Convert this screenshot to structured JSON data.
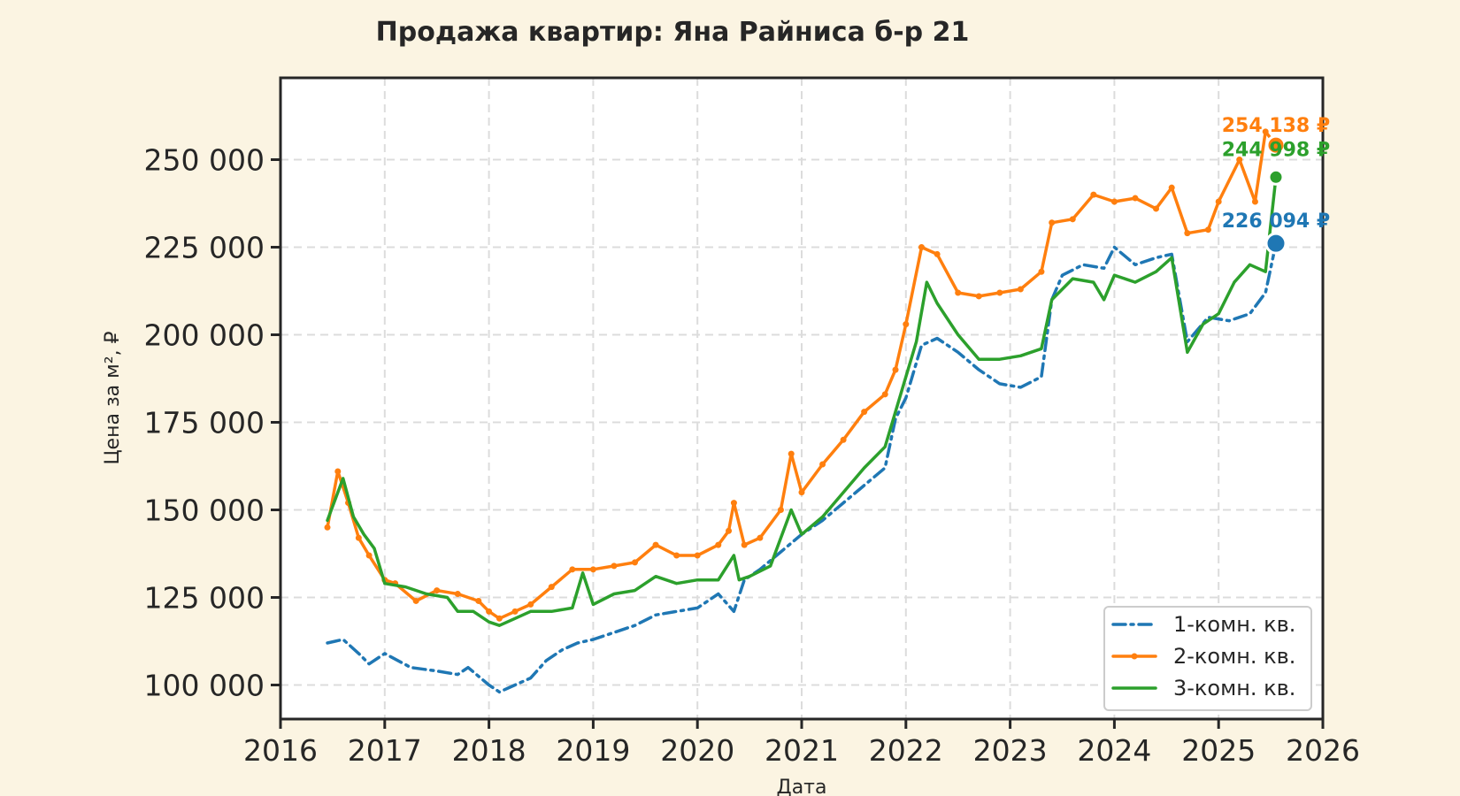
{
  "chart_data": {
    "type": "line",
    "title": "Продажа квартир: Яна Райниса б-р 21",
    "xlabel": "Дата",
    "ylabel": "Цена за м², ₽",
    "xlim": [
      2016,
      2026
    ],
    "ylim": [
      90000,
      270000
    ],
    "x_ticks": [
      "2016",
      "2017",
      "2018",
      "2019",
      "2020",
      "2021",
      "2022",
      "2023",
      "2024",
      "2025",
      "2026"
    ],
    "y_ticks": [
      100000,
      125000,
      150000,
      175000,
      200000,
      225000,
      250000
    ],
    "y_tick_labels": [
      "100 000",
      "125 000",
      "150 000",
      "175 000",
      "200 000",
      "225 000",
      "250 000"
    ],
    "grid": true,
    "legend_position": "bottom-right",
    "series": [
      {
        "name": "1-комн. кв.",
        "color": "#1f77b4",
        "style": "dashdot",
        "x": [
          2016.45,
          2016.6,
          2016.75,
          2016.85,
          2017.0,
          2017.25,
          2017.5,
          2017.7,
          2017.8,
          2018.0,
          2018.1,
          2018.25,
          2018.4,
          2018.55,
          2018.7,
          2018.85,
          2019.0,
          2019.2,
          2019.4,
          2019.6,
          2019.8,
          2020.0,
          2020.2,
          2020.35,
          2020.45,
          2020.6,
          2020.8,
          2021.0,
          2021.2,
          2021.4,
          2021.6,
          2021.8,
          2021.9,
          2022.0,
          2022.15,
          2022.3,
          2022.5,
          2022.7,
          2022.9,
          2023.1,
          2023.3,
          2023.4,
          2023.5,
          2023.7,
          2023.9,
          2024.0,
          2024.2,
          2024.4,
          2024.55,
          2024.7,
          2024.9,
          2025.1,
          2025.3,
          2025.45,
          2025.55
        ],
        "y": [
          112000,
          113000,
          109000,
          106000,
          109000,
          105000,
          104000,
          103000,
          105000,
          100000,
          98000,
          100000,
          102000,
          107000,
          110000,
          112000,
          113000,
          115000,
          117000,
          120000,
          121000,
          122000,
          126000,
          121000,
          130000,
          133000,
          138000,
          143000,
          147000,
          152000,
          157000,
          162000,
          176000,
          182000,
          197000,
          199000,
          195000,
          190000,
          186000,
          185000,
          188000,
          210000,
          217000,
          220000,
          219000,
          225000,
          220000,
          222000,
          223000,
          198000,
          205000,
          204000,
          206000,
          212000,
          226094
        ]
      },
      {
        "name": "2-комн. кв.",
        "color": "#ff7f0e",
        "style": "solid-marker",
        "x": [
          2016.45,
          2016.55,
          2016.65,
          2016.75,
          2016.85,
          2017.0,
          2017.1,
          2017.3,
          2017.5,
          2017.7,
          2017.9,
          2018.0,
          2018.1,
          2018.25,
          2018.4,
          2018.6,
          2018.8,
          2019.0,
          2019.2,
          2019.4,
          2019.6,
          2019.8,
          2020.0,
          2020.2,
          2020.3,
          2020.35,
          2020.45,
          2020.6,
          2020.8,
          2020.9,
          2021.0,
          2021.2,
          2021.4,
          2021.6,
          2021.8,
          2021.9,
          2022.0,
          2022.15,
          2022.3,
          2022.5,
          2022.7,
          2022.9,
          2023.1,
          2023.3,
          2023.4,
          2023.6,
          2023.8,
          2024.0,
          2024.2,
          2024.4,
          2024.55,
          2024.7,
          2024.9,
          2025.0,
          2025.2,
          2025.35,
          2025.45,
          2025.55
        ],
        "y": [
          145000,
          161000,
          152000,
          142000,
          137000,
          130000,
          129000,
          124000,
          127000,
          126000,
          124000,
          121000,
          119000,
          121000,
          123000,
          128000,
          133000,
          133000,
          134000,
          135000,
          140000,
          137000,
          137000,
          140000,
          144000,
          152000,
          140000,
          142000,
          150000,
          166000,
          155000,
          163000,
          170000,
          178000,
          183000,
          190000,
          203000,
          225000,
          223000,
          212000,
          211000,
          212000,
          213000,
          218000,
          232000,
          233000,
          240000,
          238000,
          239000,
          236000,
          242000,
          229000,
          230000,
          238000,
          250000,
          238000,
          258000,
          254138
        ]
      },
      {
        "name": "3-комн. кв.",
        "color": "#2ca02c",
        "style": "solid",
        "x": [
          2016.45,
          2016.6,
          2016.7,
          2016.8,
          2016.9,
          2017.0,
          2017.2,
          2017.4,
          2017.6,
          2017.7,
          2017.85,
          2018.0,
          2018.1,
          2018.25,
          2018.4,
          2018.6,
          2018.8,
          2018.9,
          2019.0,
          2019.2,
          2019.4,
          2019.6,
          2019.8,
          2020.0,
          2020.2,
          2020.35,
          2020.4,
          2020.5,
          2020.7,
          2020.9,
          2021.0,
          2021.2,
          2021.4,
          2021.6,
          2021.8,
          2021.9,
          2022.0,
          2022.1,
          2022.2,
          2022.3,
          2022.5,
          2022.7,
          2022.9,
          2023.1,
          2023.3,
          2023.4,
          2023.6,
          2023.8,
          2023.9,
          2024.0,
          2024.2,
          2024.4,
          2024.55,
          2024.7,
          2024.85,
          2025.0,
          2025.15,
          2025.3,
          2025.45,
          2025.55
        ],
        "y": [
          147000,
          159000,
          148000,
          143000,
          139000,
          129000,
          128000,
          126000,
          125000,
          121000,
          121000,
          118000,
          117000,
          119000,
          121000,
          121000,
          122000,
          132000,
          123000,
          126000,
          127000,
          131000,
          129000,
          130000,
          130000,
          137000,
          130000,
          131000,
          134000,
          150000,
          143000,
          148000,
          155000,
          162000,
          168000,
          178000,
          188000,
          198000,
          215000,
          209000,
          200000,
          193000,
          193000,
          194000,
          196000,
          210000,
          216000,
          215000,
          210000,
          217000,
          215000,
          218000,
          222000,
          195000,
          203000,
          206000,
          215000,
          220000,
          218000,
          244998
        ]
      }
    ],
    "end_labels": [
      "226 094 ₽",
      "254 138 ₽",
      "244 998 ₽"
    ]
  }
}
